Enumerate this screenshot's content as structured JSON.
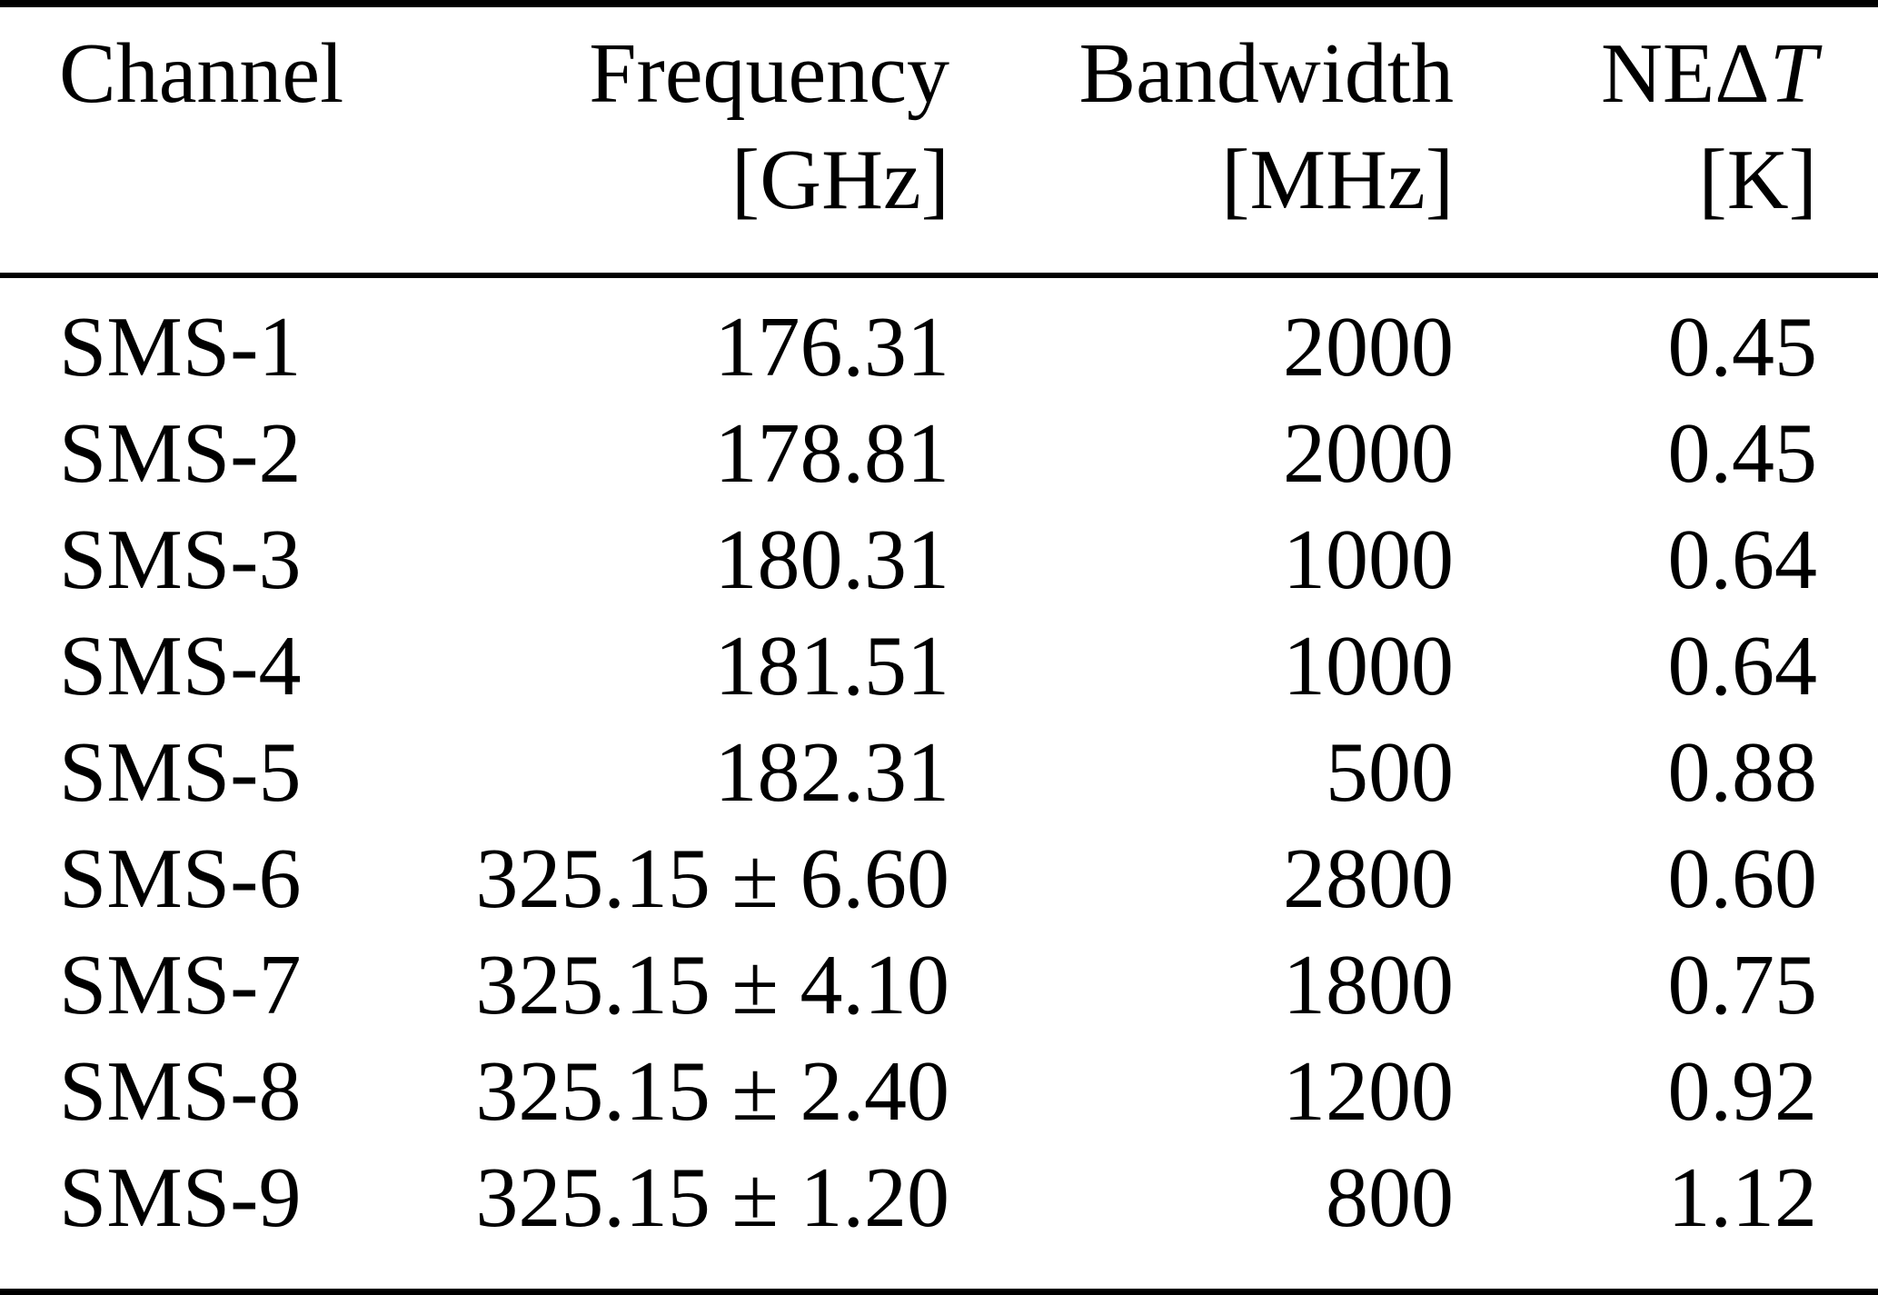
{
  "colors": {
    "background": "#ffffff",
    "text": "#000000",
    "rule": "#000000"
  },
  "table": {
    "header": {
      "channel": "Channel",
      "frequency": "Frequency",
      "frequency_unit": "[GHz]",
      "bandwidth": "Bandwidth",
      "bandwidth_unit": "[MHz]",
      "nedt_prefix": "NEΔ",
      "nedt_symbol": "T",
      "nedt_unit": "[K]"
    },
    "rows": [
      {
        "channel": "SMS-1",
        "frequency": "176.31",
        "bandwidth": "2000",
        "nedt": "0.45"
      },
      {
        "channel": "SMS-2",
        "frequency": "178.81",
        "bandwidth": "2000",
        "nedt": "0.45"
      },
      {
        "channel": "SMS-3",
        "frequency": "180.31",
        "bandwidth": "1000",
        "nedt": "0.64"
      },
      {
        "channel": "SMS-4",
        "frequency": "181.51",
        "bandwidth": "1000",
        "nedt": "0.64"
      },
      {
        "channel": "SMS-5",
        "frequency": "182.31",
        "bandwidth": "500",
        "nedt": "0.88"
      },
      {
        "channel": "SMS-6",
        "frequency": "325.15 ± 6.60",
        "bandwidth": "2800",
        "nedt": "0.60"
      },
      {
        "channel": "SMS-7",
        "frequency": "325.15 ± 4.10",
        "bandwidth": "1800",
        "nedt": "0.75"
      },
      {
        "channel": "SMS-8",
        "frequency": "325.15 ± 2.40",
        "bandwidth": "1200",
        "nedt": "0.92"
      },
      {
        "channel": "SMS-9",
        "frequency": "325.15 ± 1.20",
        "bandwidth": "800",
        "nedt": "1.12"
      }
    ]
  }
}
